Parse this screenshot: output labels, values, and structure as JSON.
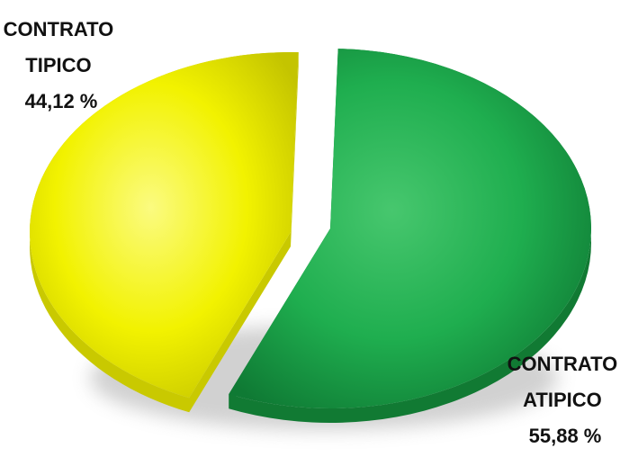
{
  "chart_data": {
    "type": "pie",
    "title": "",
    "legend": "none",
    "slices": [
      {
        "label_lines": [
          "CONTRATO",
          "TIPICO",
          "44,12 %"
        ],
        "value": 44.12,
        "color": "#f2f200",
        "shade": "#c9c900"
      },
      {
        "label_lines": [
          "CONTRATO",
          "ATIPICO",
          "55,88 %"
        ],
        "value": 55.88,
        "color": "#1fae4f",
        "shade": "#117a33"
      }
    ]
  }
}
